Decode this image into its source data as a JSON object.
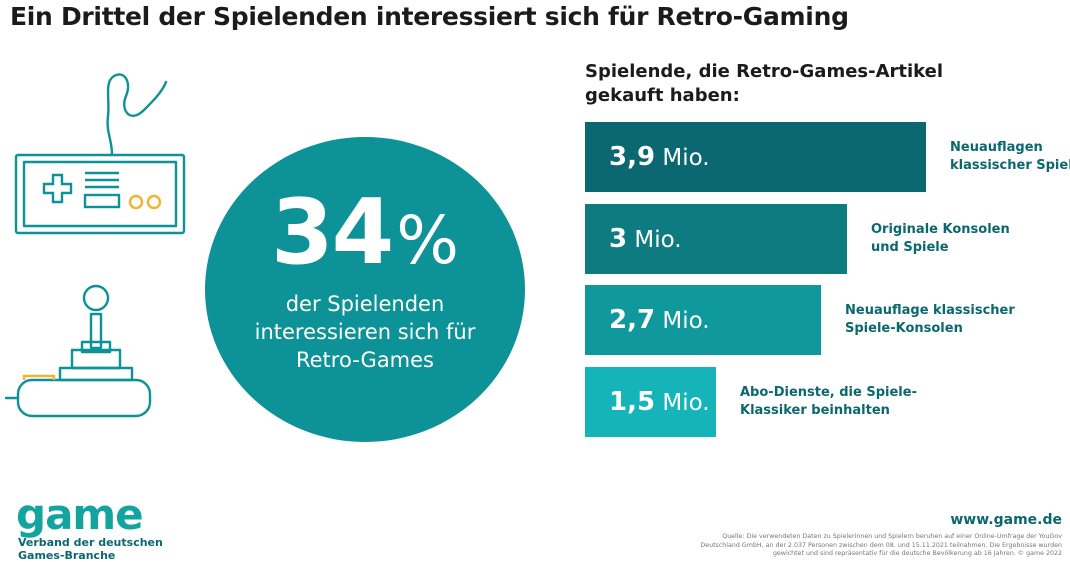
{
  "title": "Ein Drittel der Spielenden interessiert sich für Retro-Gaming",
  "highlight": {
    "value": "34",
    "unit": "%",
    "lines": [
      "der Spielenden",
      "interessieren sich für",
      "Retro-Games"
    ]
  },
  "colors": {
    "circle": "#0d9297",
    "bars": [
      "#0b6770",
      "#0e7b80",
      "#10999c",
      "#14b4b9"
    ],
    "label_text": "#0b6770"
  },
  "icons": [
    "gamepad-icon",
    "joystick-icon"
  ],
  "chart_data": {
    "type": "bar",
    "orientation": "horizontal",
    "title": [
      "Spielende, die Retro-Games-Artikel",
      "gekauft haben:"
    ],
    "unit": "Mio.",
    "bars": [
      {
        "value": 3.9,
        "value_text": "3,9",
        "label": [
          "Neuauflagen",
          "klassischer Spiele"
        ]
      },
      {
        "value": 3.0,
        "value_text": "3",
        "label": [
          "Originale Konsolen",
          "und Spiele"
        ]
      },
      {
        "value": 2.7,
        "value_text": "2,7",
        "label": [
          "Neuauflage klassischer",
          "Spiele-Konsolen"
        ]
      },
      {
        "value": 1.5,
        "value_text": "1,5",
        "label": [
          "Abo-Dienste, die Spiele-",
          "Klassiker beinhalten"
        ]
      }
    ]
  },
  "footer": {
    "logo": "game",
    "logo_sub": [
      "Verband der deutschen",
      "Games-Branche"
    ],
    "url": "www.game.de",
    "source": [
      "Quelle: Die verwendeten Daten zu Spielerinnen und Spielern beruhen auf einer Online-Umfrage der YouGov",
      "Deutschland GmbH, an der 2.037 Personen zwischen dem 08. und 15.11.2021 teilnahmen. Die Ergebnisse wurden",
      "gewichtet und sind repräsentativ für die deutsche Bevölkerung ab 16 Jahren. © game 2022"
    ]
  }
}
